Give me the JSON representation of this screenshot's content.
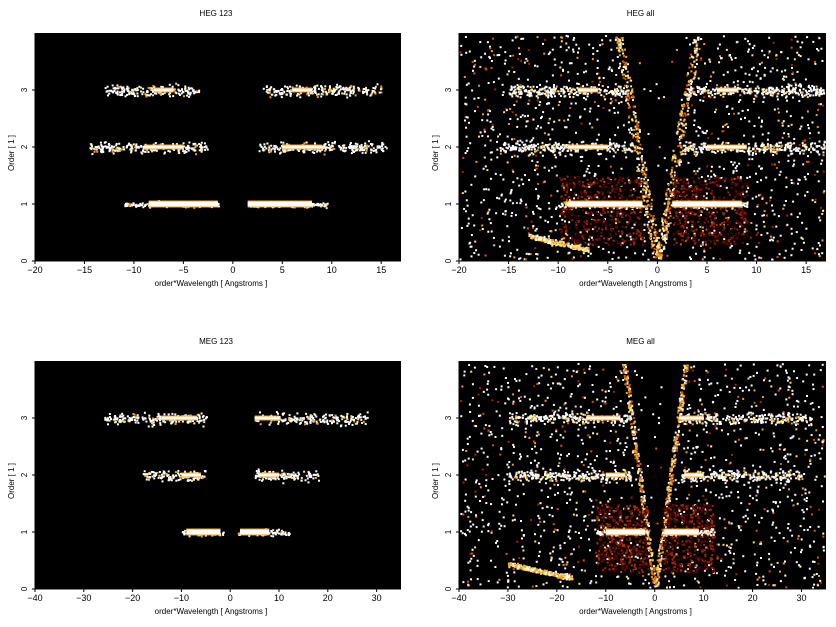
{
  "chart_data": [
    {
      "type": "heatmap",
      "title": "HEG 123",
      "xlabel": "order*Wavelength [ Angstroms ]",
      "ylabel": "Order [ 1 ]",
      "xlim": [
        -20,
        17
      ],
      "ylim": [
        0,
        4
      ],
      "xticks": [
        -20,
        -15,
        -10,
        -5,
        0,
        5,
        10,
        15
      ],
      "yticks": [
        0,
        1,
        2,
        3
      ],
      "bands": [
        {
          "order": 1,
          "ranges": [
            [
              -11,
              -1.5
            ],
            [
              1.5,
              9.5
            ]
          ],
          "bright": [
            [
              -8.5,
              -1.5
            ],
            [
              1.5,
              8
            ]
          ]
        },
        {
          "order": 2,
          "ranges": [
            [
              -14.5,
              -2.5
            ],
            [
              2.5,
              15.5
            ]
          ],
          "bright": [
            [
              -9,
              -5
            ],
            [
              5,
              9
            ]
          ]
        },
        {
          "order": 3,
          "ranges": [
            [
              -13,
              -3.5
            ],
            [
              3,
              15
            ]
          ],
          "bright": [
            [
              -8,
              -6
            ],
            [
              6,
              8
            ]
          ]
        }
      ],
      "background": "none"
    },
    {
      "type": "heatmap",
      "title": "HEG all",
      "xlabel": "order*Wavelength [ Angstroms ]",
      "ylabel": "Order [ 1 ]",
      "xlim": [
        -20,
        17
      ],
      "ylim": [
        0,
        4
      ],
      "xticks": [
        -20,
        -15,
        -10,
        -5,
        0,
        5,
        10,
        15
      ],
      "yticks": [
        0,
        1,
        2,
        3
      ],
      "bands": [
        {
          "order": 1,
          "ranges": [
            [
              -10,
              -1.5
            ],
            [
              1.5,
              9
            ]
          ],
          "bright": [
            [
              -9,
              -1.5
            ],
            [
              1.5,
              8.5
            ]
          ]
        },
        {
          "order": 2,
          "ranges": [
            [
              -16,
              -2.5
            ],
            [
              2.5,
              17
            ]
          ],
          "bright": [
            [
              -9,
              -5
            ],
            [
              5,
              9
            ]
          ]
        },
        {
          "order": 3,
          "ranges": [
            [
              -15,
              -3.5
            ],
            [
              3,
              17
            ]
          ],
          "bright": [
            [
              -8,
              -6
            ],
            [
              6,
              8
            ]
          ]
        }
      ],
      "background": "scatter"
    },
    {
      "type": "heatmap",
      "title": "MEG 123",
      "xlabel": "order*Wavelength [ Angstroms ]",
      "ylabel": "Order [ 1 ]",
      "xlim": [
        -40,
        35
      ],
      "ylim": [
        0,
        4
      ],
      "xticks": [
        -40,
        -30,
        -20,
        -10,
        0,
        10,
        20,
        30
      ],
      "yticks": [
        0,
        1,
        2,
        3
      ],
      "bands": [
        {
          "order": 1,
          "ranges": [
            [
              -10,
              -1.5
            ],
            [
              1.5,
              12
            ]
          ],
          "bright": [
            [
              -9,
              -2
            ],
            [
              2,
              8
            ]
          ]
        },
        {
          "order": 2,
          "ranges": [
            [
              -18,
              -5
            ],
            [
              5,
              18
            ]
          ],
          "bright": [
            [
              -10,
              -6
            ],
            [
              6,
              10
            ]
          ]
        },
        {
          "order": 3,
          "ranges": [
            [
              -26,
              -5
            ],
            [
              5,
              28
            ]
          ],
          "bright": [
            [
              -14,
              -7
            ],
            [
              5,
              10
            ]
          ]
        }
      ],
      "background": "none"
    },
    {
      "type": "heatmap",
      "title": "MEG all",
      "xlabel": "order*Wavelength [ Angstroms ]",
      "ylabel": "Order [ 1 ]",
      "xlim": [
        -40,
        35
      ],
      "ylim": [
        0,
        4
      ],
      "xticks": [
        -40,
        -30,
        -20,
        -10,
        0,
        10,
        20,
        30
      ],
      "yticks": [
        0,
        1,
        2,
        3
      ],
      "bands": [
        {
          "order": 1,
          "ranges": [
            [
              -12,
              -1.5
            ],
            [
              1.5,
              12
            ]
          ],
          "bright": [
            [
              -10,
              -2
            ],
            [
              2,
              9
            ]
          ]
        },
        {
          "order": 2,
          "ranges": [
            [
              -30,
              -5
            ],
            [
              5,
              30
            ]
          ],
          "bright": [
            [
              -10,
              -6
            ],
            [
              6,
              10
            ]
          ]
        },
        {
          "order": 3,
          "ranges": [
            [
              -30,
              -5
            ],
            [
              5,
              32
            ]
          ],
          "bright": [
            [
              -14,
              -7
            ],
            [
              5,
              10
            ]
          ]
        }
      ],
      "background": "scatter"
    }
  ]
}
